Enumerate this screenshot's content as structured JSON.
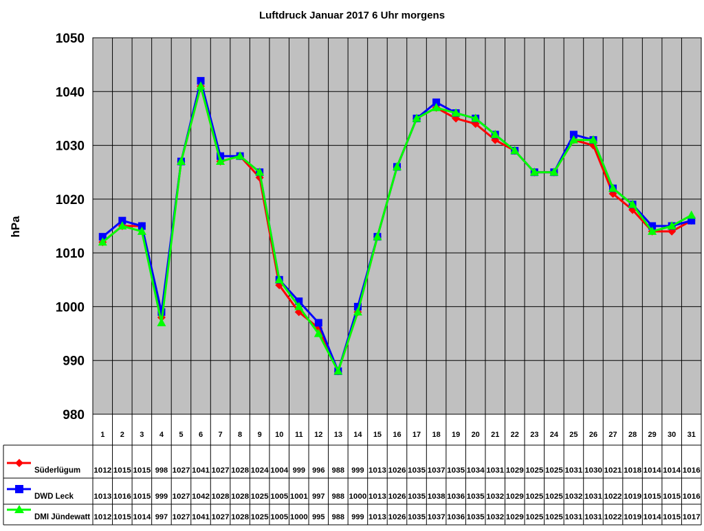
{
  "chart_data": {
    "type": "line",
    "title": "Luftdruck Januar 2017 6 Uhr morgens",
    "xlabel": "",
    "ylabel": "hPa",
    "ylim": [
      980,
      1050
    ],
    "yticks": [
      980,
      990,
      1000,
      1010,
      1020,
      1030,
      1040,
      1050
    ],
    "grid": true,
    "legend": "bottom-left data table",
    "categories": [
      "1",
      "2",
      "3",
      "4",
      "5",
      "6",
      "7",
      "8",
      "9",
      "10",
      "11",
      "12",
      "13",
      "14",
      "15",
      "16",
      "17",
      "18",
      "19",
      "20",
      "21",
      "22",
      "23",
      "24",
      "25",
      "26",
      "27",
      "28",
      "29",
      "30",
      "31"
    ],
    "series": [
      {
        "name": "Süderlügum",
        "color": "#ff0000",
        "marker": "diamond",
        "values": [
          1012,
          1015,
          1015,
          998,
          1027,
          1041,
          1027,
          1028,
          1024,
          1004,
          999,
          996,
          988,
          999,
          1013,
          1026,
          1035,
          1037,
          1035,
          1034,
          1031,
          1029,
          1025,
          1025,
          1031,
          1030,
          1021,
          1018,
          1014,
          1014,
          1016
        ]
      },
      {
        "name": "DWD Leck",
        "color": "#0000ff",
        "marker": "square",
        "values": [
          1013,
          1016,
          1015,
          999,
          1027,
          1042,
          1028,
          1028,
          1025,
          1005,
          1001,
          997,
          988,
          1000,
          1013,
          1026,
          1035,
          1038,
          1036,
          1035,
          1032,
          1029,
          1025,
          1025,
          1032,
          1031,
          1022,
          1019,
          1015,
          1015,
          1016
        ]
      },
      {
        "name": "DMI Jündewatt",
        "color": "#00ff00",
        "marker": "triangle",
        "values": [
          1012,
          1015,
          1014,
          997,
          1027,
          1041,
          1027,
          1028,
          1025,
          1005,
          1000,
          995,
          988,
          999,
          1013,
          1026,
          1035,
          1037,
          1036,
          1035,
          1032,
          1029,
          1025,
          1025,
          1031,
          1031,
          1022,
          1019,
          1014,
          1015,
          1017
        ]
      }
    ],
    "plot_background": "#c0c0c0"
  }
}
